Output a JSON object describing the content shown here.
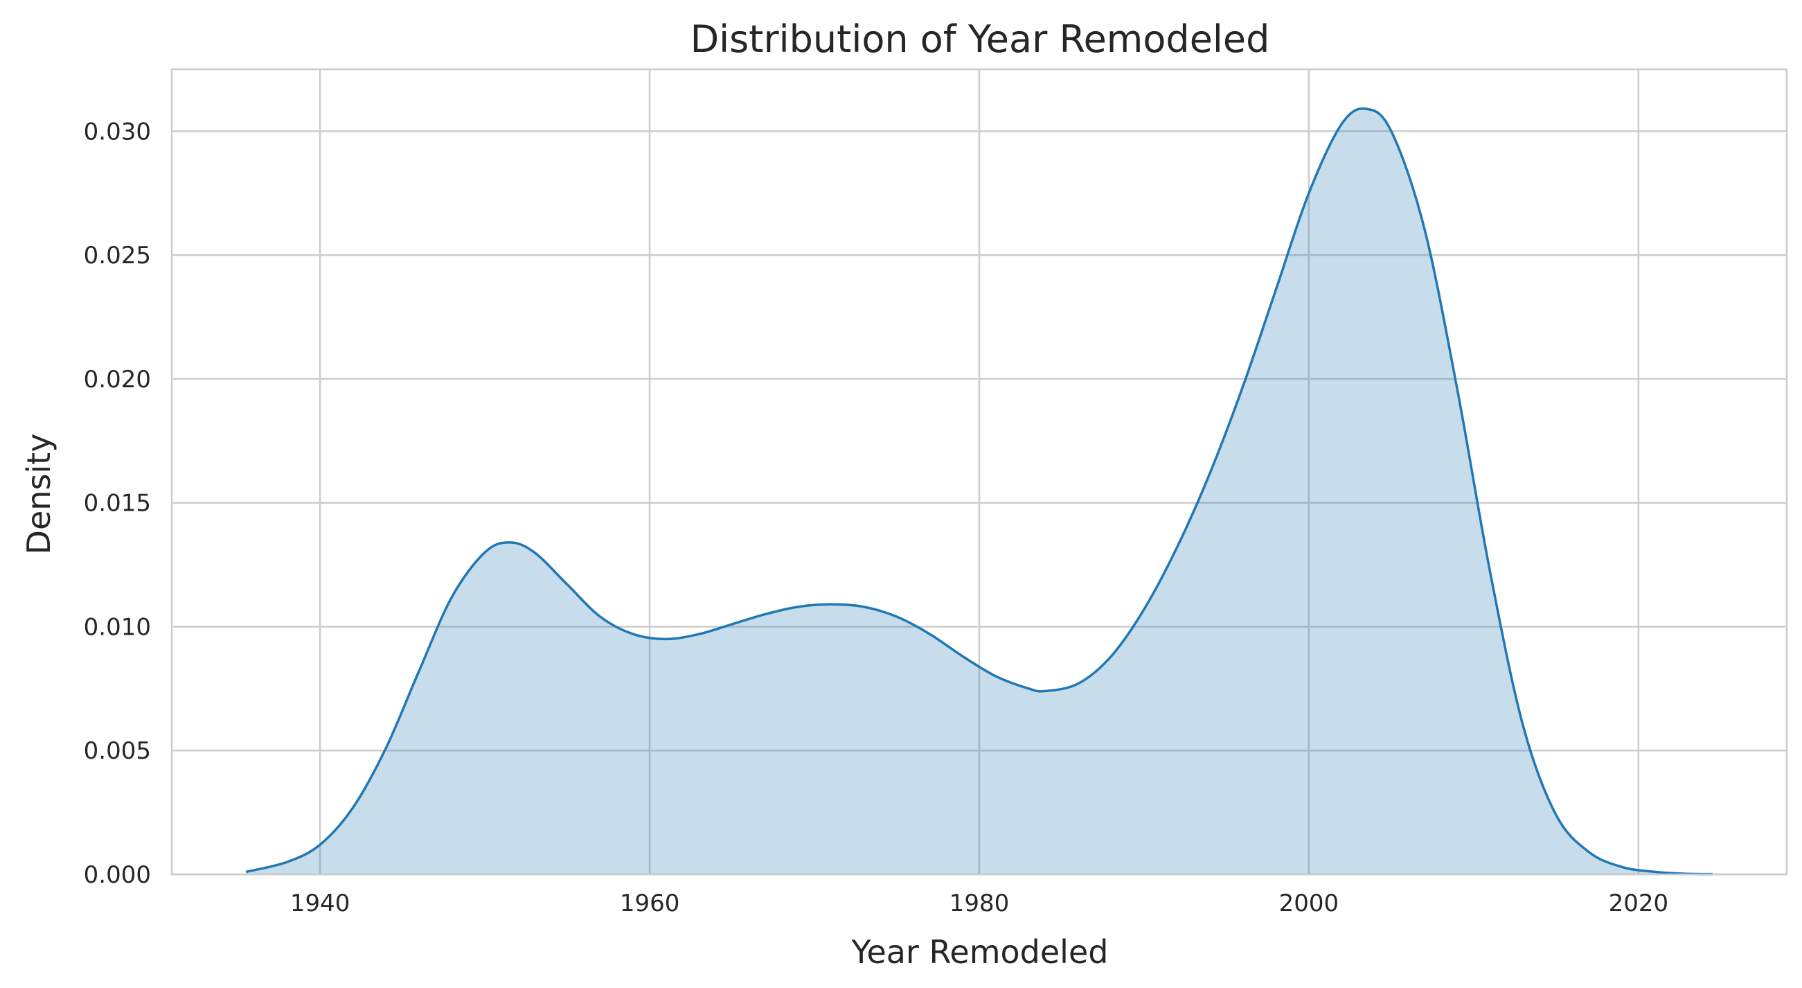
{
  "chart_data": {
    "type": "area",
    "title": "Distribution of Year Remodeled",
    "xlabel": "Year Remodeled",
    "ylabel": "Density",
    "xlim": [
      1931,
      2029
    ],
    "ylim": [
      0,
      0.0325
    ],
    "xticks": [
      1940,
      1960,
      1980,
      2000,
      2020
    ],
    "yticks": [
      0.0,
      0.005,
      0.01,
      0.015,
      0.02,
      0.025,
      0.03
    ],
    "ytick_labels": [
      "0.000",
      "0.005",
      "0.010",
      "0.015",
      "0.020",
      "0.025",
      "0.030"
    ],
    "xtick_labels": [
      "1940",
      "1960",
      "1980",
      "2000",
      "2020"
    ],
    "grid": true,
    "colors": {
      "line": "#1f77b4",
      "fill": "#1f77b4"
    },
    "x": [
      1935.5,
      1938,
      1940,
      1942,
      1944,
      1946,
      1948,
      1950,
      1951.5,
      1953,
      1955,
      1957,
      1959,
      1961,
      1963,
      1965,
      1967,
      1969,
      1971,
      1973,
      1975,
      1977,
      1979,
      1981,
      1983,
      1984,
      1986,
      1988,
      1990,
      1992,
      1994,
      1996,
      1998,
      2000,
      2002,
      2003.5,
      2005,
      2007,
      2009,
      2011,
      2013,
      2015,
      2017,
      2019,
      2021,
      2023,
      2024.5
    ],
    "y": [
      0.0001,
      0.0005,
      0.0012,
      0.0027,
      0.0051,
      0.0082,
      0.0112,
      0.013,
      0.0134,
      0.013,
      0.0117,
      0.0104,
      0.0097,
      0.0095,
      0.0097,
      0.0101,
      0.0105,
      0.0108,
      0.0109,
      0.0108,
      0.0104,
      0.0097,
      0.0088,
      0.008,
      0.0075,
      0.0074,
      0.0077,
      0.0088,
      0.0107,
      0.0132,
      0.0162,
      0.0197,
      0.0236,
      0.0275,
      0.0303,
      0.0309,
      0.03,
      0.0261,
      0.0196,
      0.0122,
      0.006,
      0.0024,
      0.0009,
      0.0003,
      0.0001,
      2e-05,
      1e-05
    ]
  }
}
